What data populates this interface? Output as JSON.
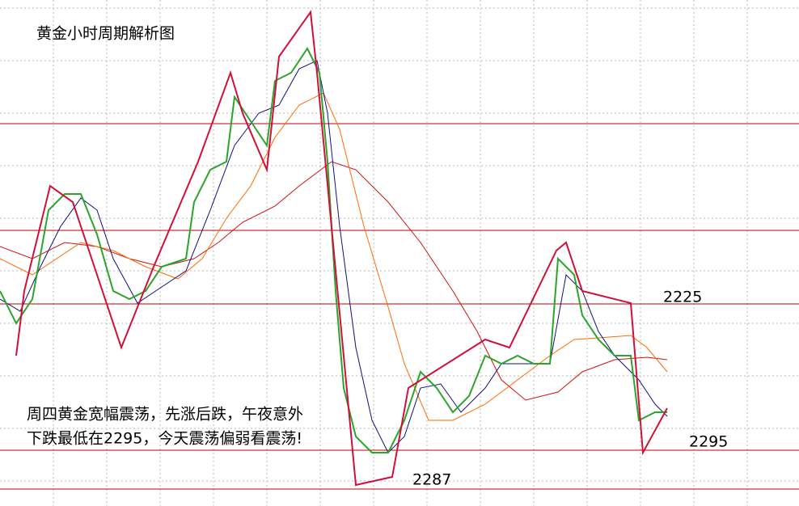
{
  "chart_data": {
    "type": "candlestick",
    "title": "黄金小时周期解析图",
    "notes": [
      "周四黄金宽幅震荡，先涨后跌，午夜意外",
      "下跌最低在2295，今天震荡偏弱看震荡!"
    ],
    "level_labels": [
      "2225",
      "2295",
      "2287"
    ]
  }
}
